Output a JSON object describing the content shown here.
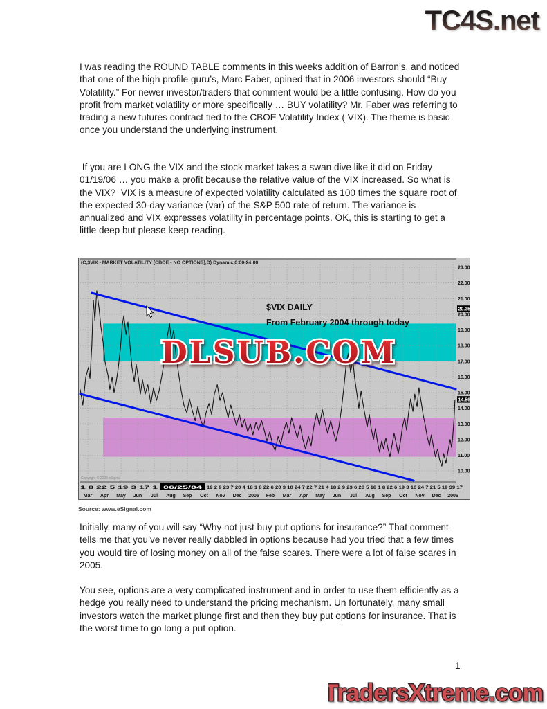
{
  "header": {
    "logo_text": "TC4S.net"
  },
  "footer": {
    "logo_text": "TradersXtreme.com",
    "page_number": "1"
  },
  "paragraphs": [
    "I was reading the ROUND TABLE comments in this weeks addition of Barron’s. and noticed that one of the high profile guru’s, Marc Faber, opined that in 2006 investors should “Buy Volatility.” For newer investor/traders that comment would be a little confusing. How do you profit from market volatility or more specifically … BUY volatility? Mr. Faber was referring to trading a new futures contract tied to the CBOE Volatility Index ( VIX). The theme is basic once you understand the underlying instrument.",
    " If you are LONG the VIX and the stock market takes a swan dive like it did on Friday 01/19/06 … you make a profit because the relative value of the VIX increased. So what is the VIX?  VIX is a measure of expected volatility calculated as 100 times the square root of the expected 30-day variance (var) of the S&P 500 rate of return. The variance is annualized and VIX expresses volatility in percentage points. OK, this is starting to get a little deep but please keep reading.",
    "Initially, many of you will say “Why not just buy put options for insurance?” That comment tells me that you’ve never really dabbled in options because had you tried that a few times you would tire of losing money on all of the false scares. There were a lot of false scares in 2005.",
    "You see, options are a very complicated instrument and in order to use them efficiently as a hedge you really need to understand the pricing mechanism. Un fortunately, many small investors watch the market plunge first and then they buy put options for insurance. That is the worst time to go long a put option."
  ],
  "colors": {
    "chart_background": "#c9c9c9",
    "grid": "#979797",
    "resistance_band": "#00c6c6",
    "support_band": "#d08fd0",
    "trendline_blue": "#0016e8",
    "price_line": "#141414",
    "watermark_red": "#c01018",
    "logo_red": "#cf5052"
  },
  "chart_data": {
    "type": "line",
    "title": "(C,$VIX - MARKET VOLATILITY (CBOE - NO OPTIONS),D) Dynamic,0:00-24:00",
    "annotation_line1": "$VIX DAILY",
    "annotation_line2": "From February 2004 through today",
    "watermark": "DLSUB.COM",
    "copyright": "Copyright © 2005 eSignal",
    "source": "Source: www.eSignal.com",
    "x_range": "February 2004 – January 2006",
    "ylim": [
      9.6,
      23.5
    ],
    "yticks": [
      "23.00",
      "22.00",
      "21.00",
      "20.00",
      "19.00",
      "18.00",
      "17.00",
      "16.00",
      "15.00",
      "14.00",
      "13.00",
      "12.00",
      "11.00",
      "10.00"
    ],
    "price_marks": [
      {
        "label": "20.35",
        "value": 20.35
      },
      {
        "label": "14.56",
        "value": 14.56
      }
    ],
    "last_price": "14.56",
    "bands": [
      {
        "name": "resistance-zone",
        "color": "#00c6c6",
        "from": 17.0,
        "to": 19.4
      },
      {
        "name": "support-zone",
        "color": "#d08fd0",
        "from": 10.9,
        "to": 13.4
      }
    ],
    "trendlines": [
      {
        "name": "upper-channel",
        "from_t": 0.031,
        "from_v": 21.36,
        "to_t": 1.0,
        "to_v": 15.22
      },
      {
        "name": "lower-channel",
        "from_t": 0.0,
        "from_v": 14.91,
        "to_t": 0.888,
        "to_v": 9.38
      }
    ],
    "x_day_labels_left": "1 8   22 5   19 3   17 1",
    "x_day_highlight": "06/25/04",
    "x_day_labels_right": "19 2 9   23 7   20 4   18 1 8   22 6   20 3 10 24 7   22 7   21 4   18 2 9   23 6   20 5   18 1 8   22 6   19 3 10 24 7   21 5   19 39 17",
    "x_month_labels": [
      "Mar",
      "Apr",
      "May",
      "Jun",
      "Jul",
      "Aug",
      "Sep",
      "Oct",
      "Nov",
      "Dec",
      "2005",
      "Feb",
      "Mar",
      "Apr",
      "May",
      "Jun",
      "Jul",
      "Aug",
      "Sep",
      "Oct",
      "Nov",
      "Dec",
      "2006"
    ],
    "series": [
      {
        "name": "$VIX daily close",
        "color": "#141414",
        "points": [
          [
            0.0,
            15.2
          ],
          [
            0.007,
            14.2
          ],
          [
            0.015,
            16.0
          ],
          [
            0.022,
            16.6
          ],
          [
            0.026,
            15.9
          ],
          [
            0.031,
            18.0
          ],
          [
            0.035,
            20.9
          ],
          [
            0.039,
            19.6
          ],
          [
            0.044,
            21.5
          ],
          [
            0.05,
            20.4
          ],
          [
            0.055,
            19.2
          ],
          [
            0.061,
            18.2
          ],
          [
            0.066,
            17.0
          ],
          [
            0.074,
            16.1
          ],
          [
            0.079,
            15.2
          ],
          [
            0.085,
            16.0
          ],
          [
            0.09,
            15.0
          ],
          [
            0.096,
            15.7
          ],
          [
            0.101,
            16.5
          ],
          [
            0.107,
            17.8
          ],
          [
            0.112,
            19.3
          ],
          [
            0.116,
            19.9
          ],
          [
            0.122,
            18.7
          ],
          [
            0.127,
            19.5
          ],
          [
            0.133,
            17.9
          ],
          [
            0.138,
            16.6
          ],
          [
            0.144,
            15.7
          ],
          [
            0.149,
            16.8
          ],
          [
            0.155,
            15.9
          ],
          [
            0.16,
            14.9
          ],
          [
            0.166,
            15.8
          ],
          [
            0.173,
            14.9
          ],
          [
            0.18,
            15.5
          ],
          [
            0.188,
            14.3
          ],
          [
            0.195,
            15.3
          ],
          [
            0.203,
            14.5
          ],
          [
            0.21,
            15.1
          ],
          [
            0.217,
            16.0
          ],
          [
            0.225,
            17.2
          ],
          [
            0.232,
            18.6
          ],
          [
            0.238,
            19.4
          ],
          [
            0.243,
            18.3
          ],
          [
            0.249,
            19.0
          ],
          [
            0.254,
            17.6
          ],
          [
            0.262,
            16.2
          ],
          [
            0.269,
            15.1
          ],
          [
            0.276,
            14.2
          ],
          [
            0.284,
            13.7
          ],
          [
            0.291,
            14.6
          ],
          [
            0.298,
            13.9
          ],
          [
            0.306,
            13.2
          ],
          [
            0.313,
            14.1
          ],
          [
            0.32,
            13.3
          ],
          [
            0.328,
            12.8
          ],
          [
            0.335,
            13.7
          ],
          [
            0.343,
            14.3
          ],
          [
            0.35,
            13.6
          ],
          [
            0.357,
            14.9
          ],
          [
            0.365,
            15.5
          ],
          [
            0.372,
            14.5
          ],
          [
            0.379,
            15.0
          ],
          [
            0.387,
            14.1
          ],
          [
            0.394,
            13.4
          ],
          [
            0.401,
            14.2
          ],
          [
            0.409,
            13.5
          ],
          [
            0.416,
            12.9
          ],
          [
            0.424,
            13.6
          ],
          [
            0.431,
            12.8
          ],
          [
            0.438,
            13.3
          ],
          [
            0.446,
            12.5
          ],
          [
            0.453,
            13.0
          ],
          [
            0.46,
            12.3
          ],
          [
            0.468,
            13.1
          ],
          [
            0.475,
            12.6
          ],
          [
            0.483,
            13.2
          ],
          [
            0.49,
            12.6
          ],
          [
            0.497,
            11.9
          ],
          [
            0.505,
            12.5
          ],
          [
            0.512,
            11.7
          ],
          [
            0.519,
            11.3
          ],
          [
            0.527,
            12.2
          ],
          [
            0.534,
            11.7
          ],
          [
            0.541,
            12.5
          ],
          [
            0.549,
            13.1
          ],
          [
            0.556,
            12.4
          ],
          [
            0.563,
            13.4
          ],
          [
            0.571,
            12.7
          ],
          [
            0.578,
            12.1
          ],
          [
            0.586,
            12.9
          ],
          [
            0.593,
            12.0
          ],
          [
            0.6,
            11.4
          ],
          [
            0.608,
            12.2
          ],
          [
            0.615,
            11.6
          ],
          [
            0.622,
            12.8
          ],
          [
            0.63,
            13.7
          ],
          [
            0.637,
            12.9
          ],
          [
            0.645,
            13.9
          ],
          [
            0.652,
            13.1
          ],
          [
            0.659,
            12.4
          ],
          [
            0.667,
            13.2
          ],
          [
            0.674,
            12.5
          ],
          [
            0.681,
            11.9
          ],
          [
            0.689,
            12.8
          ],
          [
            0.696,
            14.0
          ],
          [
            0.703,
            15.5
          ],
          [
            0.709,
            17.0
          ],
          [
            0.714,
            17.5
          ],
          [
            0.72,
            16.3
          ],
          [
            0.726,
            17.1
          ],
          [
            0.731,
            15.9
          ],
          [
            0.737,
            14.9
          ],
          [
            0.742,
            14.0
          ],
          [
            0.748,
            15.1
          ],
          [
            0.753,
            14.3
          ],
          [
            0.759,
            13.5
          ],
          [
            0.764,
            12.8
          ],
          [
            0.77,
            13.6
          ],
          [
            0.775,
            12.7
          ],
          [
            0.781,
            12.0
          ],
          [
            0.786,
            12.7
          ],
          [
            0.792,
            11.8
          ],
          [
            0.797,
            11.2
          ],
          [
            0.803,
            11.9
          ],
          [
            0.808,
            11.4
          ],
          [
            0.814,
            12.1
          ],
          [
            0.819,
            11.5
          ],
          [
            0.825,
            10.9
          ],
          [
            0.83,
            11.6
          ],
          [
            0.836,
            12.4
          ],
          [
            0.841,
            11.8
          ],
          [
            0.847,
            11.1
          ],
          [
            0.853,
            11.9
          ],
          [
            0.858,
            12.8
          ],
          [
            0.864,
            13.4
          ],
          [
            0.869,
            12.6
          ],
          [
            0.875,
            13.8
          ],
          [
            0.88,
            14.6
          ],
          [
            0.886,
            13.8
          ],
          [
            0.891,
            14.9
          ],
          [
            0.897,
            14.1
          ],
          [
            0.902,
            15.3
          ],
          [
            0.908,
            14.4
          ],
          [
            0.913,
            13.6
          ],
          [
            0.919,
            12.9
          ],
          [
            0.924,
            12.2
          ],
          [
            0.93,
            11.6
          ],
          [
            0.935,
            12.3
          ],
          [
            0.941,
            11.5
          ],
          [
            0.946,
            10.9
          ],
          [
            0.952,
            11.4
          ],
          [
            0.957,
            10.7
          ],
          [
            0.963,
            10.3
          ],
          [
            0.968,
            11.1
          ],
          [
            0.974,
            10.5
          ],
          [
            0.979,
            11.2
          ],
          [
            0.985,
            12.0
          ],
          [
            0.989,
            11.5
          ],
          [
            0.992,
            12.2
          ],
          [
            0.996,
            13.5
          ],
          [
            0.998,
            14.56
          ]
        ]
      }
    ]
  }
}
